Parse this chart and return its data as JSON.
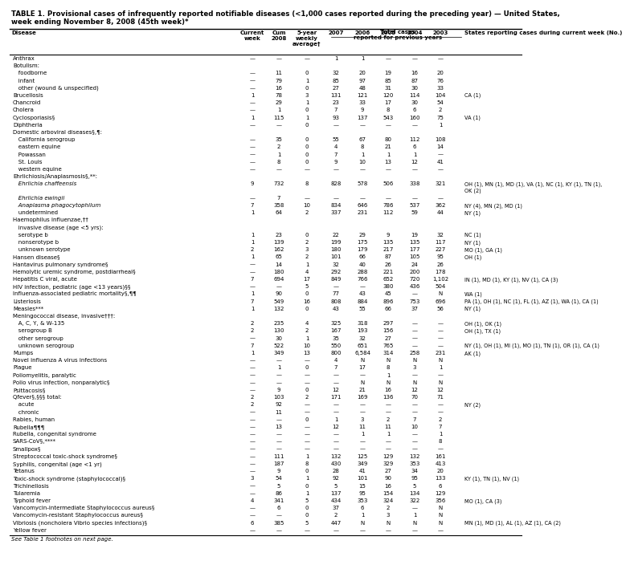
{
  "title_line1": "TABLE 1. Provisional cases of infrequently reported notifiable diseases (<1,000 cases reported during the preceding year) — United States,",
  "title_line2": "week ending November 8, 2008 (45th week)*",
  "footnote": "See Table 1 footnotes on next page.",
  "col_headers_row1": [
    "",
    "",
    "",
    "5-year",
    "Total cases",
    "",
    "",
    "",
    "",
    ""
  ],
  "col_headers_row2": [
    "",
    "Current",
    "Cum",
    "weekly",
    "reported for previous years",
    "",
    "",
    "",
    "",
    ""
  ],
  "col_headers_row3": [
    "Disease",
    "week",
    "2008",
    "average†",
    "2007",
    "2006",
    "2005",
    "2004",
    "2003",
    "States reporting cases during current week (No.)"
  ],
  "rows": [
    [
      "Anthrax",
      "—",
      "—",
      "—",
      "1",
      "1",
      "—",
      "—",
      "—",
      ""
    ],
    [
      "Botulism:",
      "",
      "",
      "",
      "",
      "",
      "",
      "",
      "",
      ""
    ],
    [
      "   foodborne",
      "—",
      "11",
      "0",
      "32",
      "20",
      "19",
      "16",
      "20",
      ""
    ],
    [
      "   infant",
      "—",
      "79",
      "1",
      "85",
      "97",
      "85",
      "87",
      "76",
      ""
    ],
    [
      "   other (wound & unspecified)",
      "—",
      "16",
      "0",
      "27",
      "48",
      "31",
      "30",
      "33",
      ""
    ],
    [
      "Brucellosis",
      "1",
      "78",
      "3",
      "131",
      "121",
      "120",
      "114",
      "104",
      "CA (1)"
    ],
    [
      "Chancroid",
      "—",
      "29",
      "1",
      "23",
      "33",
      "17",
      "30",
      "54",
      ""
    ],
    [
      "Cholera",
      "—",
      "1",
      "0",
      "7",
      "9",
      "8",
      "6",
      "2",
      ""
    ],
    [
      "Cyclosporiasis§",
      "1",
      "115",
      "1",
      "93",
      "137",
      "543",
      "160",
      "75",
      "VA (1)"
    ],
    [
      "Diphtheria",
      "—",
      "—",
      "0",
      "—",
      "—",
      "—",
      "—",
      "1",
      ""
    ],
    [
      "Domestic arboviral diseases§,¶:",
      "",
      "",
      "",
      "",
      "",
      "",
      "",
      "",
      ""
    ],
    [
      "   California serogroup",
      "—",
      "35",
      "0",
      "55",
      "67",
      "80",
      "112",
      "108",
      ""
    ],
    [
      "   eastern equine",
      "—",
      "2",
      "0",
      "4",
      "8",
      "21",
      "6",
      "14",
      ""
    ],
    [
      "   Powassan",
      "—",
      "1",
      "0",
      "7",
      "1",
      "1",
      "1",
      "—",
      ""
    ],
    [
      "   St. Louis",
      "—",
      "8",
      "0",
      "9",
      "10",
      "13",
      "12",
      "41",
      ""
    ],
    [
      "   western equine",
      "—",
      "—",
      "—",
      "—",
      "—",
      "—",
      "—",
      "—",
      ""
    ],
    [
      "Ehrlichiosis/Anaplasmosis§,**:",
      "",
      "",
      "",
      "",
      "",
      "",
      "",
      "",
      ""
    ],
    [
      "   Ehrlichia chaffeensis",
      "9",
      "732",
      "8",
      "828",
      "578",
      "506",
      "338",
      "321",
      "OH (1), MN (1), MD (1), VA (1), NC (1), KY (1), TN (1),\n      OK (2)"
    ],
    [
      "   Ehrlichia ewingii",
      "—",
      "7",
      "—",
      "—",
      "—",
      "—",
      "—",
      "—",
      ""
    ],
    [
      "   Anaplasma phagocytophilum",
      "7",
      "358",
      "10",
      "834",
      "646",
      "786",
      "537",
      "362",
      "NY (4), MN (2), MD (1)"
    ],
    [
      "   undetermined",
      "1",
      "64",
      "2",
      "337",
      "231",
      "112",
      "59",
      "44",
      "NY (1)"
    ],
    [
      "Haemophilus influenzae,††",
      "",
      "",
      "",
      "",
      "",
      "",
      "",
      "",
      ""
    ],
    [
      "   invasive disease (age <5 yrs):",
      "",
      "",
      "",
      "",
      "",
      "",
      "",
      "",
      ""
    ],
    [
      "   serotype b",
      "1",
      "23",
      "0",
      "22",
      "29",
      "9",
      "19",
      "32",
      "NC (1)"
    ],
    [
      "   nonserotype b",
      "1",
      "139",
      "2",
      "199",
      "175",
      "135",
      "135",
      "117",
      "NY (1)"
    ],
    [
      "   unknown serotype",
      "2",
      "162",
      "3",
      "180",
      "179",
      "217",
      "177",
      "227",
      "MO (1), GA (1)"
    ],
    [
      "Hansen disease§",
      "1",
      "65",
      "2",
      "101",
      "66",
      "87",
      "105",
      "95",
      "OH (1)"
    ],
    [
      "Hantavirus pulmonary syndrome§",
      "—",
      "14",
      "1",
      "32",
      "40",
      "26",
      "24",
      "26",
      ""
    ],
    [
      "Hemolytic uremic syndrome, postdiarrheal§",
      "—",
      "180",
      "4",
      "292",
      "288",
      "221",
      "200",
      "178",
      ""
    ],
    [
      "Hepatitis C viral, acute",
      "7",
      "694",
      "17",
      "849",
      "766",
      "652",
      "720",
      "1,102",
      "IN (1), MD (1), KY (1), NV (1), CA (3)"
    ],
    [
      "HIV infection, pediatric (age <13 years)§§",
      "—",
      "—",
      "5",
      "—",
      "—",
      "380",
      "436",
      "504",
      ""
    ],
    [
      "Influenza-associated pediatric mortality§,¶¶",
      "1",
      "90",
      "0",
      "77",
      "43",
      "45",
      "—",
      "N",
      "WA (1)"
    ],
    [
      "Listeriosis",
      "7",
      "549",
      "16",
      "808",
      "884",
      "896",
      "753",
      "696",
      "PA (1), OH (1), NC (1), FL (1), AZ (1), WA (1), CA (1)"
    ],
    [
      "Measles***",
      "1",
      "132",
      "0",
      "43",
      "55",
      "66",
      "37",
      "56",
      "NY (1)"
    ],
    [
      "Meningococcal disease, invasive†††:",
      "",
      "",
      "",
      "",
      "",
      "",
      "",
      "",
      ""
    ],
    [
      "   A, C, Y, & W-135",
      "2",
      "235",
      "4",
      "325",
      "318",
      "297",
      "—",
      "—",
      "OH (1), OK (1)"
    ],
    [
      "   serogroup B",
      "2",
      "130",
      "2",
      "167",
      "193",
      "156",
      "—",
      "—",
      "OH (1), TX (1)"
    ],
    [
      "   other serogroup",
      "—",
      "30",
      "1",
      "35",
      "32",
      "27",
      "—",
      "—",
      ""
    ],
    [
      "   unknown serogroup",
      "7",
      "522",
      "10",
      "550",
      "651",
      "765",
      "—",
      "—",
      "NY (1), OH (1), MI (1), MO (1), TN (1), OR (1), CA (1)"
    ],
    [
      "Mumps",
      "1",
      "349",
      "13",
      "800",
      "6,584",
      "314",
      "258",
      "231",
      "AK (1)"
    ],
    [
      "Novel influenza A virus infections",
      "—",
      "—",
      "—",
      "4",
      "N",
      "N",
      "N",
      "N",
      ""
    ],
    [
      "Plague",
      "—",
      "1",
      "0",
      "7",
      "17",
      "8",
      "3",
      "1",
      ""
    ],
    [
      "Poliomyelitis, paralytic",
      "—",
      "—",
      "—",
      "—",
      "—",
      "1",
      "—",
      "—",
      ""
    ],
    [
      "Polio virus infection, nonparalytic§",
      "—",
      "—",
      "—",
      "—",
      "N",
      "N",
      "N",
      "N",
      ""
    ],
    [
      "Psittacosis§",
      "—",
      "9",
      "0",
      "12",
      "21",
      "16",
      "12",
      "12",
      ""
    ],
    [
      "Qfever§,§§§ total:",
      "2",
      "103",
      "2",
      "171",
      "169",
      "136",
      "70",
      "71",
      ""
    ],
    [
      "   acute",
      "2",
      "92",
      "—",
      "—",
      "—",
      "—",
      "—",
      "—",
      "NY (2)"
    ],
    [
      "   chronic",
      "—",
      "11",
      "—",
      "—",
      "—",
      "—",
      "—",
      "—",
      ""
    ],
    [
      "Rabies, human",
      "—",
      "—",
      "0",
      "1",
      "3",
      "2",
      "7",
      "2",
      ""
    ],
    [
      "Rubella¶¶¶",
      "—",
      "13",
      "—",
      "12",
      "11",
      "11",
      "10",
      "7",
      ""
    ],
    [
      "Rubella, congenital syndrome",
      "—",
      "—",
      "—",
      "—",
      "1",
      "1",
      "—",
      "1",
      ""
    ],
    [
      "SARS-CoV§,****",
      "—",
      "—",
      "—",
      "—",
      "—",
      "—",
      "—",
      "8",
      ""
    ],
    [
      "Smallpox§",
      "—",
      "—",
      "—",
      "—",
      "—",
      "—",
      "—",
      "—",
      ""
    ],
    [
      "Streptococcal toxic-shock syndrome§",
      "—",
      "111",
      "1",
      "132",
      "125",
      "129",
      "132",
      "161",
      ""
    ],
    [
      "Syphilis, congenital (age <1 yr)",
      "—",
      "187",
      "8",
      "430",
      "349",
      "329",
      "353",
      "413",
      ""
    ],
    [
      "Tetanus",
      "—",
      "9",
      "0",
      "28",
      "41",
      "27",
      "34",
      "20",
      ""
    ],
    [
      "Toxic-shock syndrome (staphylococcal)§",
      "3",
      "54",
      "1",
      "92",
      "101",
      "90",
      "95",
      "133",
      "KY (1), TN (1), NV (1)"
    ],
    [
      "Trichinellosis",
      "—",
      "5",
      "0",
      "5",
      "15",
      "16",
      "5",
      "6",
      ""
    ],
    [
      "Tularemia",
      "—",
      "86",
      "1",
      "137",
      "95",
      "154",
      "134",
      "129",
      ""
    ],
    [
      "Typhoid fever",
      "4",
      "341",
      "5",
      "434",
      "353",
      "324",
      "322",
      "356",
      "MO (1), CA (3)"
    ],
    [
      "Vancomycin-intermediate Staphylococcus aureus§",
      "—",
      "6",
      "0",
      "37",
      "6",
      "2",
      "—",
      "N",
      ""
    ],
    [
      "Vancomycin-resistant Staphylococcus aureus§",
      "—",
      "—",
      "0",
      "2",
      "1",
      "3",
      "1",
      "N",
      ""
    ],
    [
      "Vibriosis (noncholera Vibrio species infections)§",
      "6",
      "385",
      "5",
      "447",
      "N",
      "N",
      "N",
      "N",
      "MN (1), MD (1), AL (1), AZ (1), CA (2)"
    ],
    [
      "Yellow fever",
      "—",
      "—",
      "—",
      "—",
      "—",
      "—",
      "—",
      "—",
      ""
    ]
  ],
  "italic_diseases": [
    "Ehrlichia chaffeensis",
    "Ehrlichia ewingii",
    "Anaplasma phagocytophilum"
  ],
  "bg_color": "#ffffff",
  "font_size": 5.0,
  "title_font_size": 6.2
}
